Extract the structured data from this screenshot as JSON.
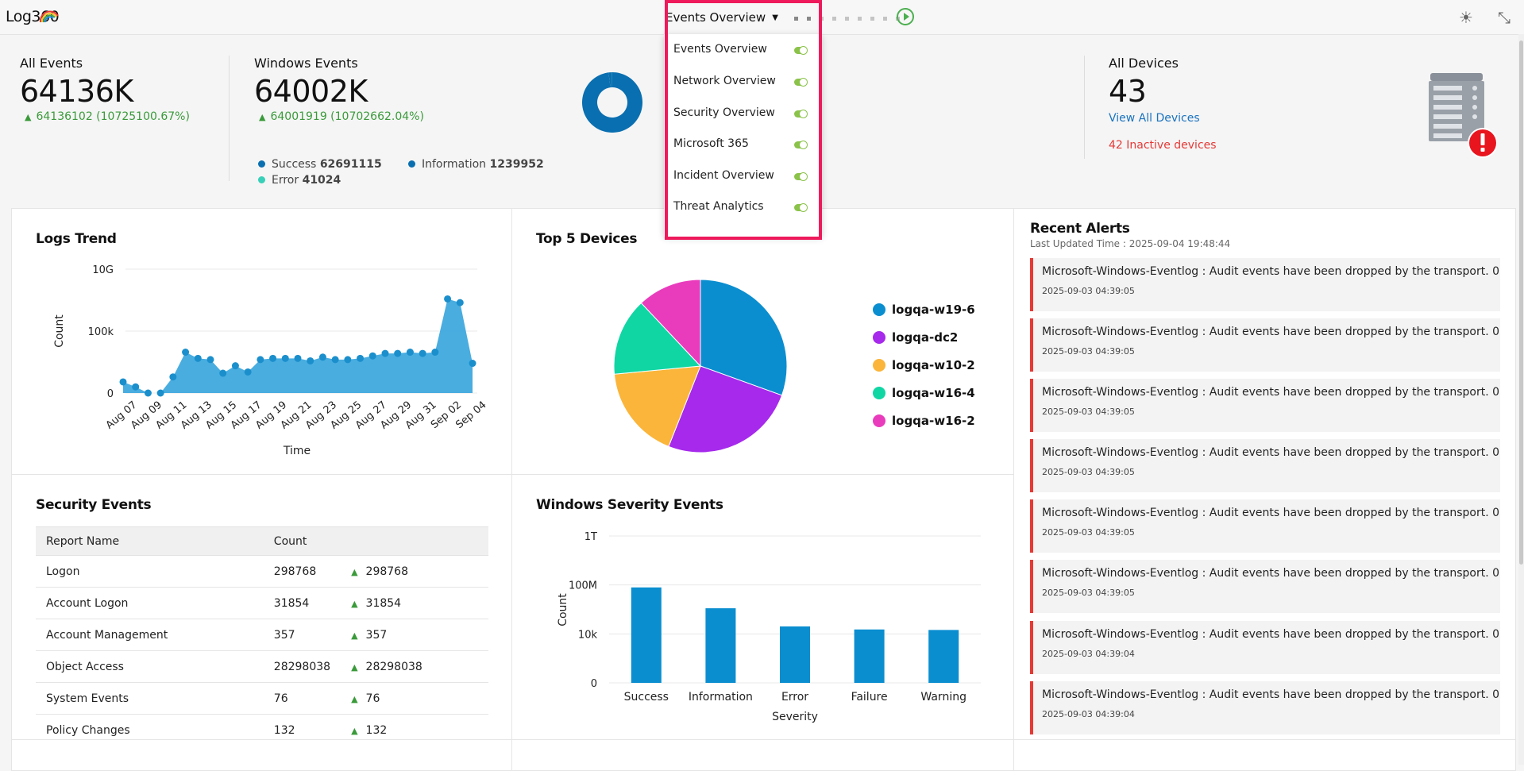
{
  "app": {
    "logo": "Log360"
  },
  "header": {
    "dashboard_select": "Events Overview",
    "theme_icon": "brightness-icon",
    "collapse_icon": "collapse-icon"
  },
  "dashboards_menu": [
    {
      "label": "Events Overview",
      "enabled": true
    },
    {
      "label": "Network Overview",
      "enabled": true
    },
    {
      "label": "Security Overview",
      "enabled": true
    },
    {
      "label": "Microsoft 365",
      "enabled": true
    },
    {
      "label": "Incident Overview",
      "enabled": true
    },
    {
      "label": "Threat Analytics",
      "enabled": true
    }
  ],
  "stats": {
    "all_events": {
      "label": "All Events",
      "value": "64136K",
      "trend": "64136102 (10725100.67%)"
    },
    "windows_events": {
      "label": "Windows Events",
      "value": "64002K",
      "trend": "64001919 (10702662.04%)",
      "legend": [
        {
          "label": "Success",
          "value": "62691115",
          "color": "#0a6fb0"
        },
        {
          "label": "Information",
          "value": "1239952",
          "color": "#0a6fb0"
        },
        {
          "label": "Error",
          "value": "41024",
          "color": "#38d0b8"
        }
      ]
    },
    "all_devices": {
      "label": "All Devices",
      "value": "43",
      "link": "View All Devices",
      "inactive": "42 Inactive devices"
    }
  },
  "panels": {
    "logs_trend": {
      "title": "Logs Trend"
    },
    "top_devices": {
      "title": "Top 5 Devices"
    },
    "recent_alerts": {
      "title": "Recent Alerts",
      "updated": "Last Updated Time : 2025-09-04 19:48:44"
    },
    "security_events": {
      "title": "Security Events"
    },
    "windows_severity": {
      "title": "Windows Severity Events"
    }
  },
  "security_table": {
    "headers": [
      "Report Name",
      "Count"
    ],
    "rows": [
      {
        "name": "Logon",
        "count": "298768",
        "trend": "298768"
      },
      {
        "name": "Account Logon",
        "count": "31854",
        "trend": "31854"
      },
      {
        "name": "Account Management",
        "count": "357",
        "trend": "357"
      },
      {
        "name": "Object Access",
        "count": "28298038",
        "trend": "28298038"
      },
      {
        "name": "System Events",
        "count": "76",
        "trend": "76"
      },
      {
        "name": "Policy Changes",
        "count": "132",
        "trend": "132"
      }
    ]
  },
  "alerts": [
    {
      "msg": "Microsoft-Windows-Eventlog : Audit events have been dropped by the transport. 0",
      "time": "2025-09-03 04:39:05"
    },
    {
      "msg": "Microsoft-Windows-Eventlog : Audit events have been dropped by the transport. 0",
      "time": "2025-09-03 04:39:05"
    },
    {
      "msg": "Microsoft-Windows-Eventlog : Audit events have been dropped by the transport. 0",
      "time": "2025-09-03 04:39:05"
    },
    {
      "msg": "Microsoft-Windows-Eventlog : Audit events have been dropped by the transport. 0",
      "time": "2025-09-03 04:39:05"
    },
    {
      "msg": "Microsoft-Windows-Eventlog : Audit events have been dropped by the transport. 0",
      "time": "2025-09-03 04:39:05"
    },
    {
      "msg": "Microsoft-Windows-Eventlog : Audit events have been dropped by the transport. 0",
      "time": "2025-09-03 04:39:05"
    },
    {
      "msg": "Microsoft-Windows-Eventlog : Audit events have been dropped by the transport. 0",
      "time": "2025-09-03 04:39:04"
    },
    {
      "msg": "Microsoft-Windows-Eventlog : Audit events have been dropped by the transport. 0",
      "time": "2025-09-03 04:39:04"
    }
  ],
  "chart_data": [
    {
      "type": "area",
      "title": "Logs Trend",
      "xlabel": "Time",
      "ylabel": "Count",
      "yscale": "log",
      "yticks": [
        "0",
        "100k",
        "10G"
      ],
      "xticks": [
        "Aug 07",
        "Aug 09",
        "Aug 11",
        "Aug 13",
        "Aug 15",
        "Aug 17",
        "Aug 19",
        "Aug 21",
        "Aug 23",
        "Aug 25",
        "Aug 27",
        "Aug 29",
        "Aug 31",
        "Sep 02",
        "Sep 04"
      ],
      "color": "#3fa9de",
      "values_level": [
        0.09,
        0.05,
        0.0,
        0.0,
        0.13,
        0.33,
        0.28,
        0.27,
        0.16,
        0.22,
        0.17,
        0.27,
        0.28,
        0.28,
        0.28,
        0.26,
        0.29,
        0.27,
        0.27,
        0.28,
        0.3,
        0.32,
        0.32,
        0.33,
        0.32,
        0.33,
        0.76,
        0.73,
        0.24
      ]
    },
    {
      "type": "pie",
      "title": "Top 5 Devices",
      "labels": [
        "logqa-w19-6",
        "logqa-dc2",
        "logqa-w10-2",
        "logqa-w16-4",
        "logqa-w16-2"
      ],
      "values": [
        30.5,
        25.5,
        17.5,
        14.5,
        12.0
      ],
      "colors": [
        "#0a8ed0",
        "#a629ec",
        "#fbb53a",
        "#10d6a4",
        "#e93cbd"
      ]
    },
    {
      "type": "bar",
      "title": "Windows Severity Events",
      "xlabel": "Severity",
      "ylabel": "Count",
      "yscale": "log",
      "yticks": [
        "0",
        "10k",
        "100M",
        "1T"
      ],
      "categories": [
        "Success",
        "Information",
        "Error",
        "Failure",
        "Warning"
      ],
      "values": [
        62691115,
        1239952,
        41024,
        23000,
        21000
      ],
      "color": "#0a8ed0"
    },
    {
      "type": "pie",
      "title": "Windows Events",
      "labels": [
        "Success",
        "Information",
        "Error"
      ],
      "values": [
        62691115,
        1239952,
        41024
      ],
      "colors": [
        "#0a6fb0",
        "#0a6fb0",
        "#38d0b8"
      ]
    }
  ]
}
